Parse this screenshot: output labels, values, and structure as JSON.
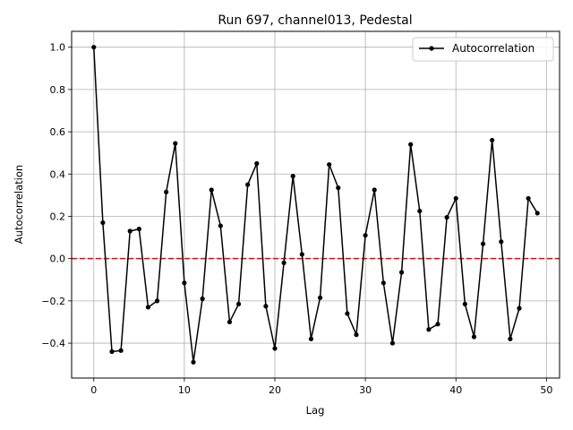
{
  "chart_data": {
    "type": "line",
    "title": "Run 697, channel013, Pedestal",
    "xlabel": "Lag",
    "ylabel": "Autocorrelation",
    "xlim": [
      -2.45,
      51.45
    ],
    "ylim": [
      -0.565,
      1.075
    ],
    "xticks": [
      0,
      10,
      20,
      30,
      40,
      50
    ],
    "yticks": [
      -0.4,
      -0.2,
      0.0,
      0.2,
      0.4,
      0.6,
      0.8,
      1.0
    ],
    "ytick_labels": [
      "−0.4",
      "−0.2",
      "0.0",
      "0.2",
      "0.4",
      "0.6",
      "0.8",
      "1.0"
    ],
    "grid": true,
    "legend_position": "top-right",
    "reference_line": {
      "y": 0.0,
      "color": "#ff0000",
      "style": "dashed"
    },
    "series": [
      {
        "name": "Autocorrelation",
        "color": "#000000",
        "marker": "circle",
        "x": [
          0,
          1,
          2,
          3,
          4,
          5,
          6,
          7,
          8,
          9,
          10,
          11,
          12,
          13,
          14,
          15,
          16,
          17,
          18,
          19,
          20,
          21,
          22,
          23,
          24,
          25,
          26,
          27,
          28,
          29,
          30,
          31,
          32,
          33,
          34,
          35,
          36,
          37,
          38,
          39,
          40,
          41,
          42,
          43,
          44,
          45,
          46,
          47,
          48,
          49
        ],
        "y": [
          1.0,
          0.17,
          -0.44,
          -0.435,
          0.13,
          0.14,
          -0.23,
          -0.2,
          0.315,
          0.545,
          -0.115,
          -0.49,
          -0.19,
          0.325,
          0.155,
          -0.3,
          -0.215,
          0.35,
          0.45,
          -0.225,
          -0.425,
          -0.02,
          0.39,
          0.02,
          -0.38,
          -0.185,
          0.445,
          0.335,
          -0.26,
          -0.36,
          0.11,
          0.325,
          -0.115,
          -0.4,
          -0.065,
          0.54,
          0.225,
          -0.335,
          -0.31,
          0.195,
          0.285,
          -0.215,
          -0.37,
          0.07,
          0.56,
          0.08,
          -0.38,
          -0.235,
          0.285,
          0.215
        ]
      }
    ]
  }
}
